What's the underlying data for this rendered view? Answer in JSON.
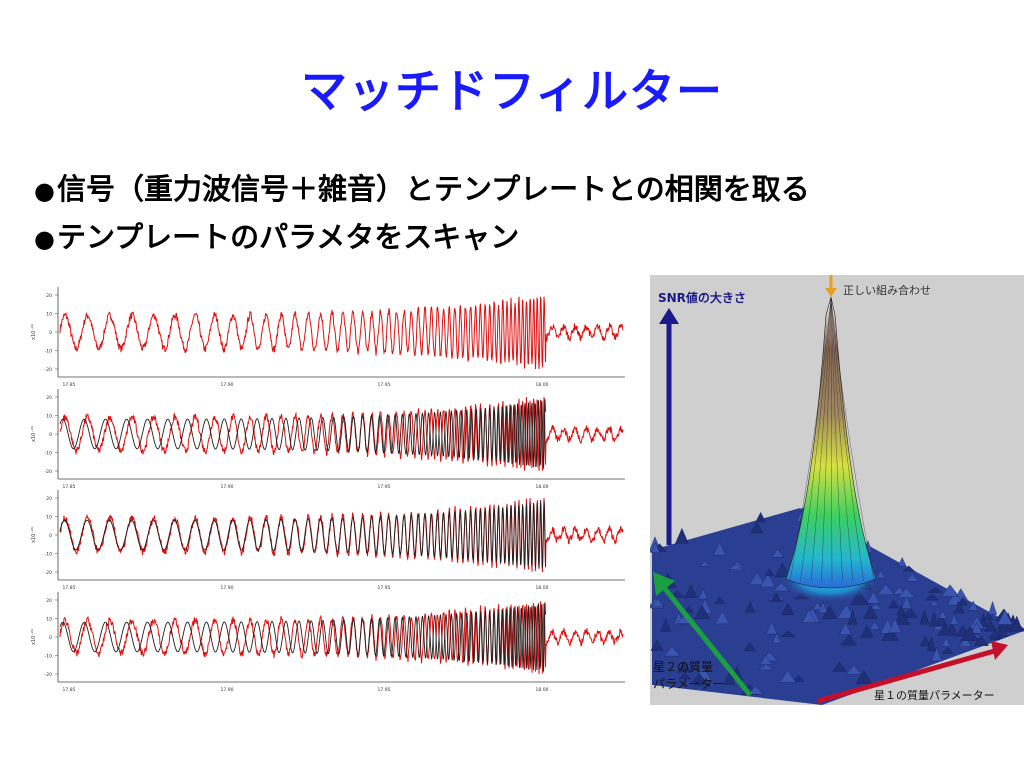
{
  "slide": {
    "title": "マッチドフィルター",
    "bullets": [
      {
        "marker": "●",
        "text": "信号（重力波信号＋雑音）とテンプレートとの相関を取る"
      },
      {
        "marker": "●",
        "text": "テンプレートのパラメタをスキャン"
      }
    ]
  },
  "chart_data": [
    {
      "type": "line",
      "panel": "signal",
      "series": [
        {
          "color": "#e01010"
        }
      ],
      "y_tick_labels": [
        "20",
        "10",
        "0",
        "-10",
        "-20"
      ],
      "y_axis_label": "x10⁻²¹",
      "x_tick_labels": [
        "17.85",
        "17.90",
        "17.95",
        "18.00"
      ],
      "ylim": [
        -20,
        20
      ]
    },
    {
      "type": "line",
      "panel": "template-1",
      "series": [
        {
          "color": "#e01010"
        },
        {
          "color": "#202020"
        }
      ],
      "y_tick_labels": [
        "20",
        "10",
        "0",
        "-10",
        "-20"
      ],
      "y_axis_label": "x10⁻²¹",
      "x_tick_labels": [
        "17.85",
        "17.90",
        "17.95",
        "18.00"
      ],
      "ylim": [
        -20,
        20
      ]
    },
    {
      "type": "line",
      "panel": "template-2",
      "series": [
        {
          "color": "#e01010"
        },
        {
          "color": "#202020"
        }
      ],
      "y_tick_labels": [
        "20",
        "10",
        "0",
        "-10",
        "-20"
      ],
      "y_axis_label": "x10⁻²¹",
      "x_tick_labels": [
        "17.85",
        "17.90",
        "17.95",
        "18.00"
      ],
      "ylim": [
        -20,
        20
      ]
    },
    {
      "type": "line",
      "panel": "template-3",
      "series": [
        {
          "color": "#e01010"
        },
        {
          "color": "#202020"
        }
      ],
      "y_tick_labels": [
        "20",
        "10",
        "0",
        "-10",
        "-20"
      ],
      "y_axis_label": "x10⁻²¹",
      "x_tick_labels": [
        "17.85",
        "17.90",
        "17.95",
        "18.00"
      ],
      "ylim": [
        -20,
        20
      ]
    }
  ],
  "snr_surface": {
    "y_axis_label": "SNR値の大きさ",
    "peak_label": "正しい組み合わせ",
    "x_axis_label": "星１の質量パラメーター",
    "depth_axis_label_line1": "星２の質量",
    "depth_axis_label_line2": "パラメーター",
    "colors": {
      "background": "#cfcfcf",
      "snr_arrow": "#1a1a8a",
      "x_arrow": "#c4102a",
      "depth_arrow": "#1aa040",
      "peak_arrow": "#e8a020"
    }
  }
}
